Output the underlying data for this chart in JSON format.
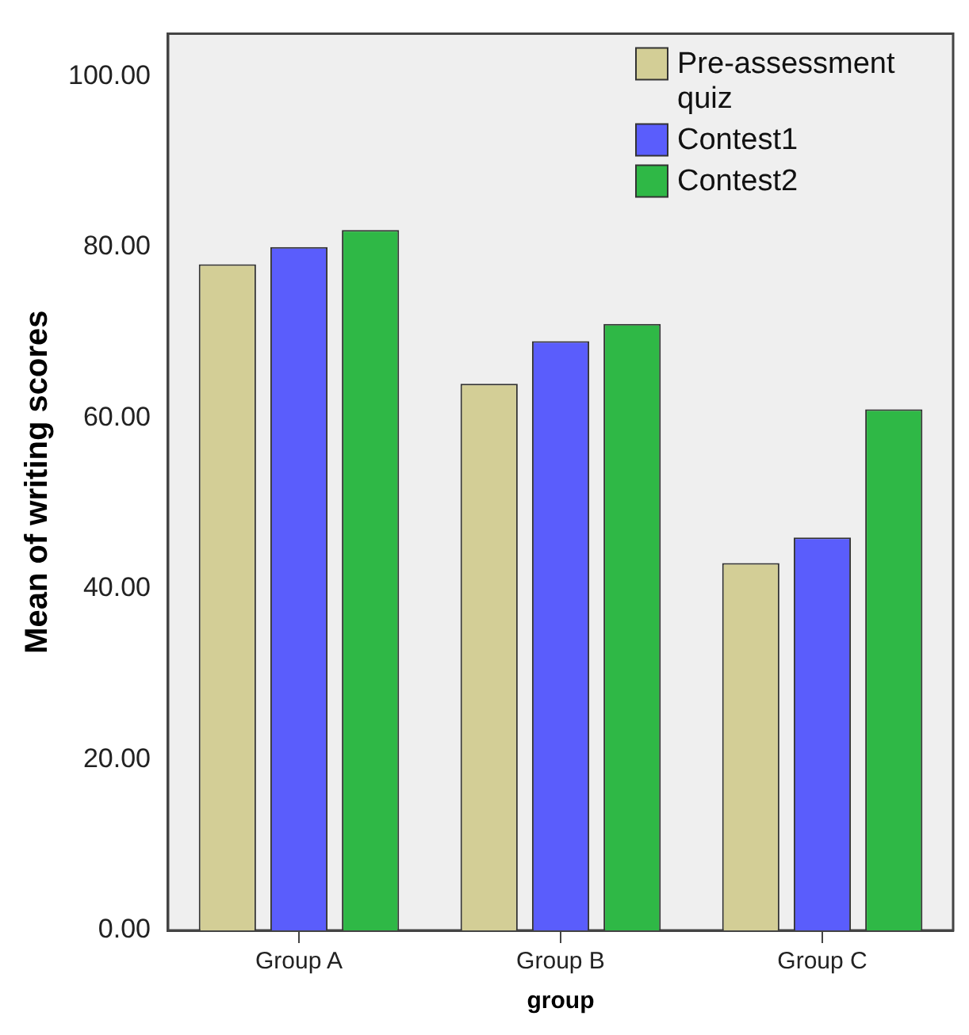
{
  "chart_data": {
    "type": "bar",
    "xlabel": "group",
    "ylabel": "Mean of writing scores",
    "categories": [
      "Group A",
      "Group B",
      "Group C"
    ],
    "series": [
      {
        "name": "Pre-assessment quiz",
        "color": "#d3ce96",
        "values": [
          78,
          64,
          43
        ]
      },
      {
        "name": "Contest1",
        "color": "#5a5dfc",
        "values": [
          80,
          69,
          46
        ]
      },
      {
        "name": "Contest2",
        "color": "#2fb846",
        "values": [
          82,
          71,
          61
        ]
      }
    ],
    "ylim": [
      0,
      105
    ],
    "yticks": [
      {
        "value": 0,
        "label": "0.00"
      },
      {
        "value": 20,
        "label": "20.00"
      },
      {
        "value": 40,
        "label": "40.00"
      },
      {
        "value": 60,
        "label": "60.00"
      },
      {
        "value": 80,
        "label": "80.00"
      },
      {
        "value": 100,
        "label": "100.00"
      }
    ],
    "grid": false,
    "legend": "top right"
  }
}
